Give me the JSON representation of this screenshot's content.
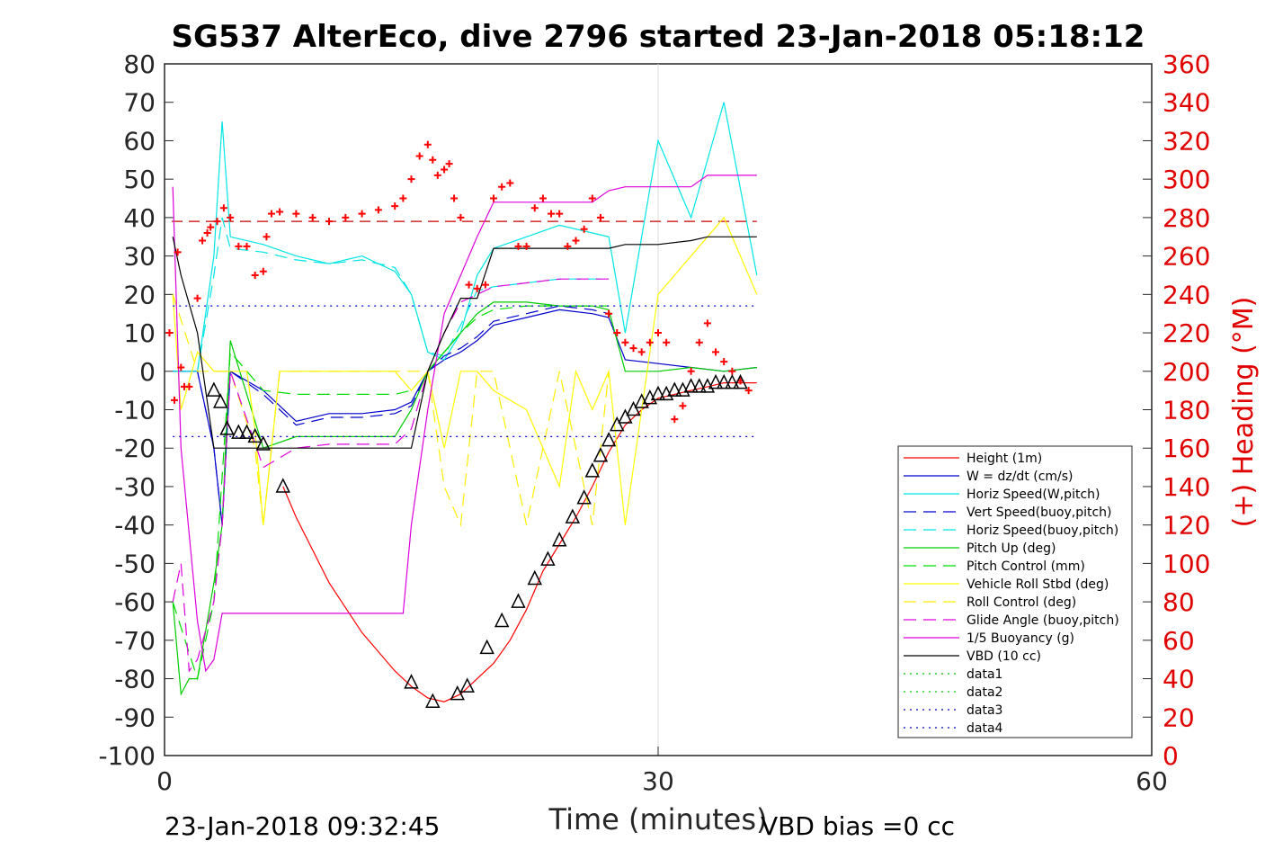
{
  "chart_data": {
    "type": "line",
    "title": "SG537 AlterEco, dive 2796 started 23-Jan-2018 05:18:12",
    "xlabel": "Time (minutes)",
    "ylabel_left": "",
    "ylabel_right": "(+) Heading (°M)",
    "xlim": [
      0,
      60
    ],
    "ylim_left": [
      -100,
      80
    ],
    "ylim_right": [
      0,
      360
    ],
    "x_ticks": [
      "0",
      "30",
      "60"
    ],
    "y_ticks_left": [
      "80",
      "70",
      "60",
      "50",
      "40",
      "30",
      "20",
      "10",
      "0",
      "-10",
      "-20",
      "-30",
      "-40",
      "-50",
      "-60",
      "-70",
      "-80",
      "-90",
      "-100"
    ],
    "y_ticks_right": [
      "360",
      "340",
      "320",
      "300",
      "280",
      "260",
      "240",
      "220",
      "200",
      "180",
      "160",
      "140",
      "120",
      "100",
      "80",
      "60",
      "40",
      "20",
      "0"
    ],
    "grid": "x at 30 only",
    "legend_position": "lower-right",
    "colors": {
      "height": "#ff0000",
      "w": "#0000cc",
      "horiz_speed_w": "#00e5e5",
      "vert_speed_buoy": "#0000cc",
      "horiz_speed_buoy": "#00e5e5",
      "pitch_up": "#00cc00",
      "pitch_control": "#00dd00",
      "roll": "#ffff00",
      "roll_control": "#ffee00",
      "glide_angle": "#dd00dd",
      "buoyancy": "#dd00dd",
      "vbd": "#000000",
      "heading": "#ff0000"
    },
    "series": [
      {
        "name": "Height (1m)",
        "style": "solid",
        "color": "#ff0000",
        "x": [
          7.2,
          8,
          10,
          12,
          14,
          15,
          16,
          17,
          18,
          19,
          20,
          21,
          22,
          23,
          24,
          25,
          26,
          27,
          28,
          29,
          30,
          31,
          32,
          33,
          34,
          35,
          36
        ],
        "y": [
          -30,
          -38,
          -55,
          -68,
          -78,
          -82,
          -85,
          -86,
          -84,
          -80,
          -76,
          -70,
          -62,
          -52,
          -45,
          -38,
          -30,
          -21,
          -14,
          -10,
          -7,
          -6,
          -5,
          -4,
          -3,
          -3,
          -3
        ]
      },
      {
        "name": "W = dz/dt (cm/s)",
        "style": "solid",
        "color": "#0000cc",
        "x": [
          0.5,
          2,
          3,
          3.5,
          4,
          6,
          8,
          10,
          12,
          14,
          15,
          16,
          17,
          18,
          19,
          20,
          22,
          24,
          26,
          27,
          28,
          30,
          32,
          34,
          36
        ],
        "y": [
          0,
          0,
          -20,
          -40,
          0,
          -5,
          -13,
          -11,
          -11,
          -10,
          -8,
          0,
          3,
          5,
          8,
          12,
          14,
          16,
          15,
          14,
          3,
          2,
          1,
          0,
          1
        ]
      },
      {
        "name": "Horiz Speed(W,pitch)",
        "style": "solid",
        "color": "#00e5e5",
        "x": [
          0.5,
          2,
          3,
          3.5,
          4,
          6,
          8,
          10,
          12,
          14,
          15,
          16,
          17,
          18,
          19,
          20,
          22,
          24,
          26,
          27,
          28,
          30,
          32,
          34,
          36
        ],
        "y": [
          0,
          0,
          30,
          65,
          35,
          33,
          30,
          28,
          30,
          26,
          20,
          5,
          3,
          10,
          25,
          32,
          35,
          38,
          36,
          35,
          10,
          60,
          40,
          70,
          25
        ]
      },
      {
        "name": "Vert Speed(buoy,pitch)",
        "style": "dash",
        "color": "#0000cc",
        "x": [
          0.5,
          2,
          3,
          3.5,
          4,
          6,
          8,
          10,
          12,
          14,
          15,
          16,
          17,
          18,
          19,
          20,
          22,
          24,
          26,
          27
        ],
        "y": [
          0,
          0,
          -20,
          -40,
          0,
          -6,
          -14,
          -12,
          -12,
          -11,
          -9,
          0,
          4,
          6,
          9,
          13,
          15,
          17,
          16,
          15
        ]
      },
      {
        "name": "Horiz Speed(buoy,pitch)",
        "style": "dash",
        "color": "#00e5e5",
        "x": [
          0.5,
          2,
          3,
          3.5,
          4,
          6,
          8,
          10,
          12,
          14,
          15,
          16,
          17,
          18,
          19,
          20,
          22,
          24,
          26,
          27
        ],
        "y": [
          0,
          0,
          25,
          40,
          32,
          31,
          29,
          28,
          29,
          27,
          20,
          5,
          4,
          12,
          21,
          22,
          23,
          24,
          24,
          24
        ]
      },
      {
        "name": "Pitch Up (deg)",
        "style": "solid",
        "color": "#00cc00",
        "x": [
          0.5,
          1,
          1.5,
          2,
          3,
          3.5,
          4,
          6,
          8,
          10,
          12,
          14,
          15,
          16,
          17,
          18,
          19,
          20,
          22,
          24,
          26,
          27,
          28,
          30,
          32,
          34,
          36
        ],
        "y": [
          -60,
          -84,
          -80,
          -80,
          -55,
          -40,
          8,
          -20,
          -17,
          -17,
          -17,
          -17,
          -10,
          0,
          5,
          10,
          15,
          18,
          18,
          17,
          17,
          16,
          0,
          0,
          1,
          0,
          1
        ]
      },
      {
        "name": "Pitch Control (mm)",
        "style": "dash",
        "color": "#00dd00",
        "x": [
          0.5,
          2,
          3,
          4,
          6,
          8,
          10,
          12,
          14,
          15,
          16,
          17,
          18,
          19,
          20,
          22,
          24,
          26,
          27
        ],
        "y": [
          -60,
          -80,
          -60,
          5,
          -5,
          -6,
          -6,
          -6,
          -6,
          -5,
          0,
          5,
          10,
          14,
          16,
          17,
          17,
          17,
          17
        ]
      },
      {
        "name": "Vehicle Roll Stbd (deg)",
        "style": "solid",
        "color": "#ffff00",
        "x": [
          0.5,
          1,
          2,
          3,
          4,
          5,
          5.5,
          6,
          7,
          8,
          10,
          12,
          14,
          15,
          16,
          17,
          18,
          19,
          20,
          22,
          24,
          25,
          26,
          27,
          28,
          30,
          32,
          34,
          36
        ],
        "y": [
          20,
          -10,
          5,
          0,
          0,
          0,
          -15,
          -40,
          0,
          0,
          0,
          0,
          0,
          -5,
          0,
          -20,
          0,
          0,
          -5,
          -10,
          -30,
          0,
          -10,
          0,
          -40,
          20,
          30,
          40,
          20
        ]
      },
      {
        "name": "Roll Control (deg)",
        "style": "dash",
        "color": "#ffee00",
        "x": [
          0.5,
          2,
          3,
          4,
          5.5,
          6,
          7,
          8,
          10,
          12,
          14,
          15,
          16,
          17,
          18,
          19,
          20,
          22,
          24,
          26,
          27
        ],
        "y": [
          20,
          0,
          0,
          0,
          -20,
          -40,
          0,
          0,
          0,
          0,
          0,
          0,
          0,
          -30,
          -40,
          0,
          0,
          -40,
          0,
          -40,
          0
        ]
      },
      {
        "name": "Glide Angle (buoy,pitch)",
        "style": "dash",
        "color": "#dd00dd",
        "x": [
          0.5,
          1,
          1.5,
          2,
          3,
          3.5,
          4,
          6,
          8,
          10,
          12,
          14,
          15,
          16,
          17,
          18,
          19,
          20,
          22,
          24,
          26,
          27
        ],
        "y": [
          -60,
          -50,
          -78,
          -75,
          -60,
          -40,
          0,
          -25,
          -20,
          -19,
          -19,
          -19,
          -15,
          0,
          10,
          18,
          20,
          22,
          23,
          24,
          24,
          24
        ]
      },
      {
        "name": "1/5 Buoyancy (g)",
        "style": "solid",
        "color": "#dd00dd",
        "x": [
          0.5,
          1,
          2,
          2.5,
          3,
          3.5,
          4,
          8,
          10,
          12,
          14,
          14.5,
          15,
          16,
          17,
          19,
          20,
          22,
          25,
          26,
          27,
          28,
          30,
          32,
          33,
          34,
          36
        ],
        "y": [
          48,
          -20,
          -65,
          -78,
          -75,
          -63,
          -63,
          -63,
          -63,
          -63,
          -63,
          -63,
          -40,
          -10,
          15,
          35,
          44,
          44,
          44,
          44,
          47,
          48,
          48,
          48,
          51,
          51,
          51
        ]
      },
      {
        "name": "VBD (10 cc)",
        "style": "solid",
        "color": "#000000",
        "x": [
          0.5,
          1,
          2,
          3,
          4,
          6,
          8,
          10,
          12,
          14,
          15,
          16,
          17,
          18,
          19,
          20,
          22,
          24,
          26,
          27,
          28,
          30,
          32,
          33,
          34,
          36
        ],
        "y": [
          35,
          25,
          10,
          -20,
          -20,
          -20,
          -20,
          -20,
          -20,
          -20,
          -20,
          0,
          10,
          19,
          19,
          32,
          32,
          32,
          32,
          32,
          33,
          33,
          34,
          35,
          35,
          35
        ]
      },
      {
        "name": "data1",
        "style": "dot",
        "color": "#00cc00",
        "x": [],
        "y": []
      },
      {
        "name": "data2",
        "style": "dot",
        "color": "#00cc00",
        "x": [],
        "y": []
      },
      {
        "name": "data3",
        "style": "dot",
        "color": "#0000cc",
        "x": [
          0.5,
          36
        ],
        "y": [
          -17,
          -17
        ]
      },
      {
        "name": "data4",
        "style": "dot",
        "color": "#0000cc",
        "x": [
          0.5,
          36
        ],
        "y": [
          17,
          17
        ]
      }
    ],
    "reference_lines": [
      {
        "axis": "right",
        "y": 278,
        "style": "dash",
        "color": "#cc0000"
      }
    ],
    "heading_points": {
      "axis": "right",
      "x": [
        0.3,
        0.6,
        0.8,
        1.0,
        1.2,
        1.5,
        2.0,
        2.3,
        2.6,
        2.8,
        3.2,
        3.6,
        4.0,
        4.5,
        5.0,
        5.5,
        6.0,
        6.2,
        6.5,
        7.0,
        8.0,
        9.0,
        10.0,
        11.0,
        12.0,
        13.0,
        14.0,
        14.5,
        15.0,
        15.5,
        16.0,
        16.3,
        16.6,
        17.0,
        17.3,
        17.6,
        18.0,
        18.5,
        19.0,
        19.5,
        20.0,
        20.5,
        21.0,
        21.5,
        22.0,
        22.5,
        23.0,
        23.5,
        24.0,
        24.5,
        25.0,
        25.5,
        26.0,
        26.5,
        27.0,
        27.5,
        28.0,
        28.5,
        29.0,
        29.5,
        30.0,
        30.5,
        31.0,
        31.5,
        32.0,
        32.5,
        33.0,
        33.5,
        34.0,
        34.5,
        35.0,
        35.5
      ],
      "y": [
        220,
        185,
        262,
        202,
        192,
        192,
        238,
        268,
        272,
        275,
        278,
        285,
        280,
        265,
        265,
        250,
        252,
        270,
        282,
        283,
        282,
        280,
        278,
        280,
        282,
        284,
        286,
        290,
        300,
        312,
        318,
        310,
        302,
        305,
        308,
        290,
        280,
        245,
        243,
        245,
        290,
        296,
        298,
        265,
        265,
        285,
        290,
        282,
        282,
        265,
        268,
        274,
        290,
        280,
        230,
        220,
        215,
        212,
        210,
        215,
        220,
        215,
        175,
        182,
        200,
        215,
        225,
        210,
        205,
        200,
        195,
        190
      ]
    },
    "height_markers": {
      "axis": "left",
      "x": [
        3.0,
        3.4,
        3.8,
        4.5,
        5.0,
        5.5,
        6.0,
        7.2,
        15.0,
        16.3,
        17.8,
        18.4,
        19.6,
        20.5,
        21.5,
        22.5,
        23.3,
        24.0,
        24.8,
        25.5,
        26.0,
        26.5,
        27.0,
        27.5,
        28.0,
        28.5,
        29.0,
        29.5,
        30.0,
        30.5,
        31.0,
        31.5,
        32.0,
        32.5,
        33.0,
        33.5,
        34.0,
        34.5,
        35.0
      ],
      "y": [
        -5,
        -8,
        -15,
        -16,
        -16,
        -17,
        -19,
        -30,
        -81,
        -86,
        -84,
        -82,
        -72,
        -65,
        -60,
        -54,
        -49,
        -44,
        -38,
        -33,
        -26,
        -22,
        -18,
        -14,
        -12,
        -10,
        -8,
        -7,
        -6,
        -6,
        -5,
        -5,
        -4,
        -4,
        -4,
        -3,
        -3,
        -3,
        -3
      ]
    },
    "footer_left": "23-Jan-2018 09:32:45",
    "footer_right": "VBD bias =0 cc"
  }
}
